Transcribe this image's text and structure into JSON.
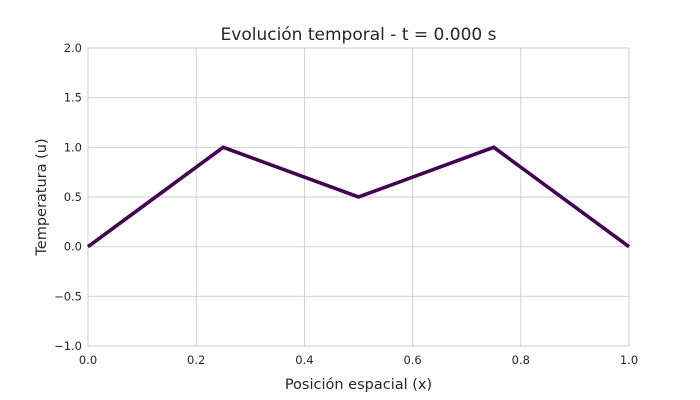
{
  "chart_data": {
    "type": "line",
    "title": "Evolución temporal - t = 0.000 s",
    "xlabel": "Posición espacial (x)",
    "ylabel": "Temperatura (u)",
    "xlim": [
      0.0,
      1.0
    ],
    "ylim": [
      -1.0,
      2.0
    ],
    "grid": true,
    "legend": false,
    "x_ticks": [
      "0.0",
      "0.2",
      "0.4",
      "0.6",
      "0.8",
      "1.0"
    ],
    "y_ticks": [
      "−1.0",
      "−0.5",
      "0.0",
      "0.5",
      "1.0",
      "1.5",
      "2.0"
    ],
    "series": [
      {
        "x": [
          0.0,
          0.25,
          0.5,
          0.75,
          1.0
        ],
        "y": [
          0.0,
          1.0,
          0.5,
          1.0,
          0.0
        ],
        "color": "#440154"
      }
    ]
  }
}
